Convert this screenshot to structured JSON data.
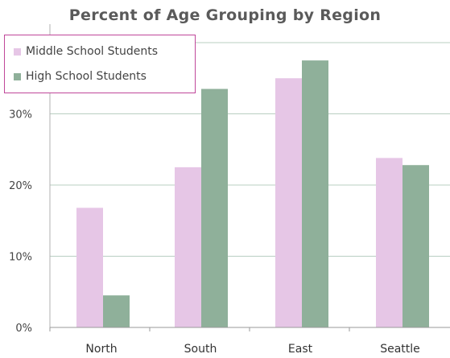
{
  "chart_data": {
    "type": "bar",
    "title": "Percent of Age Grouping by Region",
    "xlabel": "",
    "ylabel": "",
    "categories": [
      "North",
      "South",
      "East",
      "Seattle"
    ],
    "series": [
      {
        "name": "Middle School Students",
        "values": [
          16.8,
          22.5,
          35,
          23.8
        ],
        "color": "#e6c6e6"
      },
      {
        "name": "High School Students",
        "values": [
          4.5,
          33.5,
          37.5,
          22.8
        ],
        "color": "#8fb09a"
      }
    ],
    "ylim": [
      0,
      40
    ],
    "y_ticks": [
      {
        "value": 0,
        "label": "0%"
      },
      {
        "value": 10,
        "label": "10%"
      },
      {
        "value": 20,
        "label": "20%"
      },
      {
        "value": 30,
        "label": "30%"
      }
    ],
    "grid": true,
    "legend_position": "top-left",
    "colors": {
      "grid": "#b9cfc2",
      "legend_border": "#c0479a"
    }
  }
}
